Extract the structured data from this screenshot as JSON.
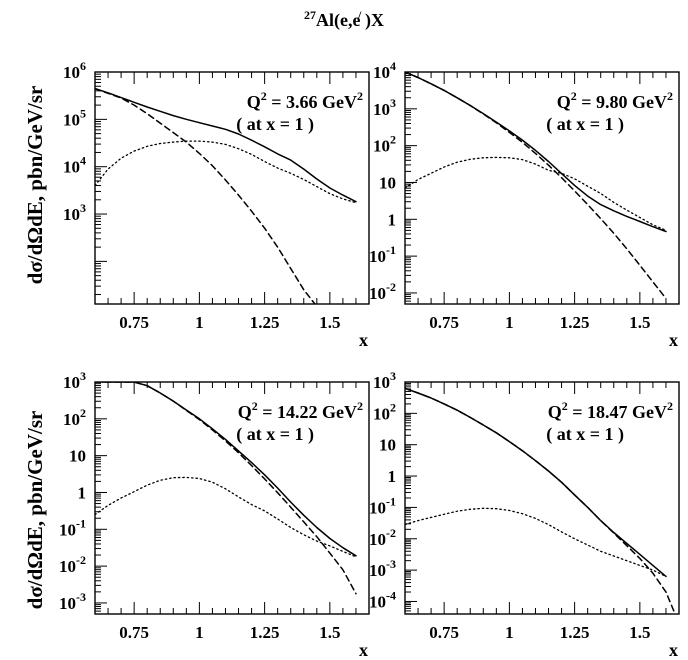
{
  "figure": {
    "title": "Al(e,e )X",
    "title_sup": "27",
    "title_prime": "/",
    "ylabel": "dσ/dΩdE,  pbn/GeV/sr"
  },
  "chart_data": [
    {
      "type": "line",
      "xlabel": "x",
      "xlim": [
        0.6,
        1.65
      ],
      "xticks": [
        "0.75",
        "1",
        "1.25",
        "1.5"
      ],
      "yscale": "log",
      "ylim_exp": [
        1.1,
        6.0
      ],
      "ytick_labels": [
        {
          "base": "10",
          "exp": "6",
          "at": 6
        },
        {
          "base": "10",
          "exp": "5",
          "at": 5
        },
        {
          "base": "10",
          "exp": "4",
          "at": 4
        },
        {
          "base": "10",
          "exp": "3",
          "at": 3
        }
      ],
      "annotation": {
        "q2": "Q",
        "q2_exp": "2",
        "q2_value": " = 3.66 GeV",
        "q2_unit_exp": "2",
        "note": "( at x = 1 )"
      },
      "series": [
        {
          "style": "solid",
          "x": [
            0.6,
            0.65,
            0.7,
            0.75,
            0.8,
            0.85,
            0.9,
            0.95,
            1.0,
            1.05,
            1.1,
            1.15,
            1.2,
            1.25,
            1.3,
            1.35,
            1.4,
            1.45,
            1.5,
            1.55,
            1.6
          ],
          "log10y": [
            5.65,
            5.56,
            5.46,
            5.36,
            5.26,
            5.17,
            5.08,
            5.0,
            4.93,
            4.86,
            4.79,
            4.69,
            4.56,
            4.42,
            4.27,
            4.14,
            3.95,
            3.74,
            3.55,
            3.4,
            3.26
          ]
        },
        {
          "style": "dashed",
          "x": [
            0.6,
            0.65,
            0.7,
            0.75,
            0.8,
            0.85,
            0.9,
            0.95,
            1.0,
            1.05,
            1.1,
            1.15,
            1.2,
            1.25,
            1.3,
            1.35,
            1.4,
            1.45
          ],
          "log10y": [
            5.65,
            5.55,
            5.45,
            5.3,
            5.12,
            4.92,
            4.72,
            4.52,
            4.28,
            4.02,
            3.72,
            3.4,
            3.06,
            2.7,
            2.3,
            1.85,
            1.4,
            1.05
          ]
        },
        {
          "style": "dotted",
          "x": [
            0.6,
            0.65,
            0.7,
            0.75,
            0.8,
            0.85,
            0.9,
            0.95,
            1.0,
            1.05,
            1.1,
            1.15,
            1.2,
            1.25,
            1.3,
            1.35,
            1.4,
            1.45,
            1.5,
            1.55,
            1.6
          ],
          "log10y": [
            3.6,
            3.95,
            4.18,
            4.33,
            4.43,
            4.49,
            4.52,
            4.54,
            4.54,
            4.52,
            4.47,
            4.38,
            4.26,
            4.11,
            3.97,
            3.86,
            3.73,
            3.58,
            3.43,
            3.32,
            3.24
          ]
        }
      ]
    },
    {
      "type": "line",
      "xlabel": "x",
      "xlim": [
        0.6,
        1.65
      ],
      "xticks": [
        "0.75",
        "1",
        "1.25",
        "1.5"
      ],
      "yscale": "log",
      "ylim_exp": [
        -2.3,
        4.0
      ],
      "ytick_labels": [
        {
          "base": "10",
          "exp": "4",
          "at": 4
        },
        {
          "base": "10",
          "exp": "3",
          "at": 3
        },
        {
          "base": "10",
          "exp": "2",
          "at": 2
        },
        {
          "base": "10",
          "exp": "",
          "at": 1
        },
        {
          "base": "1",
          "exp": "",
          "at": 0
        },
        {
          "base": "10",
          "exp": "-1",
          "at": -1
        },
        {
          "base": "10",
          "exp": "-2",
          "at": -2
        }
      ],
      "annotation": {
        "q2": "Q",
        "q2_exp": "2",
        "q2_value": " = 9.80 GeV",
        "q2_unit_exp": "2",
        "note": "( at x = 1 )"
      },
      "series": [
        {
          "style": "solid",
          "x": [
            0.6,
            0.65,
            0.7,
            0.75,
            0.8,
            0.85,
            0.9,
            0.95,
            1.0,
            1.05,
            1.1,
            1.15,
            1.2,
            1.25,
            1.3,
            1.35,
            1.4,
            1.45,
            1.5,
            1.55,
            1.6
          ],
          "log10y": [
            4.0,
            3.85,
            3.68,
            3.5,
            3.3,
            3.09,
            2.87,
            2.64,
            2.4,
            2.15,
            1.87,
            1.57,
            1.24,
            0.92,
            0.63,
            0.4,
            0.23,
            0.08,
            -0.06,
            -0.2,
            -0.33
          ]
        },
        {
          "style": "dashed",
          "x": [
            0.6,
            0.65,
            0.7,
            0.75,
            0.8,
            0.85,
            0.9,
            0.95,
            1.0,
            1.05,
            1.1,
            1.15,
            1.2,
            1.25,
            1.3,
            1.35,
            1.4,
            1.45,
            1.5,
            1.55,
            1.6
          ],
          "log10y": [
            4.0,
            3.85,
            3.68,
            3.5,
            3.3,
            3.09,
            2.86,
            2.62,
            2.36,
            2.09,
            1.79,
            1.47,
            1.13,
            0.77,
            0.4,
            0.02,
            -0.38,
            -0.8,
            -1.25,
            -1.7,
            -2.15
          ]
        },
        {
          "style": "dotted",
          "x": [
            0.6,
            0.65,
            0.7,
            0.75,
            0.8,
            0.85,
            0.9,
            0.95,
            1.0,
            1.05,
            1.1,
            1.15,
            1.2,
            1.25,
            1.3,
            1.35,
            1.4,
            1.45,
            1.5,
            1.55,
            1.6
          ],
          "log10y": [
            0.85,
            1.08,
            1.25,
            1.42,
            1.55,
            1.63,
            1.67,
            1.68,
            1.67,
            1.62,
            1.5,
            1.33,
            1.25,
            1.1,
            0.9,
            0.7,
            0.46,
            0.25,
            0.05,
            -0.15,
            -0.3
          ]
        }
      ]
    },
    {
      "type": "line",
      "xlabel": "x",
      "xlim": [
        0.6,
        1.65
      ],
      "xticks": [
        "0.75",
        "1",
        "1.25",
        "1.5"
      ],
      "yscale": "log",
      "ylim_exp": [
        -3.3,
        3.0
      ],
      "ytick_labels": [
        {
          "base": "10",
          "exp": "3",
          "at": 3
        },
        {
          "base": "10",
          "exp": "2",
          "at": 2
        },
        {
          "base": "10",
          "exp": "",
          "at": 1
        },
        {
          "base": "1",
          "exp": "",
          "at": 0
        },
        {
          "base": "10",
          "exp": "-1",
          "at": -1
        },
        {
          "base": "10",
          "exp": "-2",
          "at": -2
        },
        {
          "base": "10",
          "exp": "-3",
          "at": -3
        }
      ],
      "annotation": {
        "q2": "Q",
        "q2_exp": "2",
        "q2_value": " = 14.22 GeV",
        "q2_unit_exp": "2",
        "note": "( at x = 1 )"
      },
      "series": [
        {
          "style": "solid",
          "x": [
            0.6,
            0.65,
            0.7,
            0.75,
            0.8,
            0.85,
            0.9,
            0.95,
            1.0,
            1.05,
            1.1,
            1.15,
            1.2,
            1.25,
            1.3,
            1.35,
            1.4,
            1.45,
            1.5,
            1.55,
            1.6
          ],
          "log10y": [
            3.0,
            3.0,
            3.0,
            3.0,
            2.9,
            2.7,
            2.48,
            2.24,
            2.0,
            1.73,
            1.44,
            1.13,
            0.81,
            0.48,
            0.12,
            -0.26,
            -0.62,
            -0.95,
            -1.25,
            -1.5,
            -1.72
          ]
        },
        {
          "style": "dashed",
          "x": [
            0.6,
            0.65,
            0.7,
            0.75,
            0.8,
            0.85,
            0.9,
            0.95,
            1.0,
            1.05,
            1.1,
            1.15,
            1.2,
            1.25,
            1.3,
            1.35,
            1.4,
            1.45,
            1.5,
            1.55,
            1.6
          ],
          "log10y": [
            3.0,
            3.0,
            3.0,
            3.0,
            2.9,
            2.7,
            2.48,
            2.23,
            1.98,
            1.7,
            1.4,
            1.08,
            0.73,
            0.37,
            -0.01,
            -0.4,
            -0.8,
            -1.2,
            -1.65,
            -2.1,
            -2.75
          ]
        },
        {
          "style": "dotted",
          "x": [
            0.6,
            0.65,
            0.7,
            0.75,
            0.8,
            0.85,
            0.9,
            0.95,
            1.0,
            1.05,
            1.1,
            1.15,
            1.2,
            1.25,
            1.3,
            1.35,
            1.4,
            1.45,
            1.5,
            1.55,
            1.6
          ],
          "log10y": [
            -0.6,
            -0.35,
            -0.15,
            0.02,
            0.2,
            0.33,
            0.4,
            0.41,
            0.38,
            0.28,
            0.1,
            -0.12,
            -0.33,
            -0.5,
            -0.72,
            -0.95,
            -1.15,
            -1.32,
            -1.45,
            -1.6,
            -1.75
          ]
        }
      ]
    },
    {
      "type": "line",
      "xlabel": "x",
      "xlim": [
        0.6,
        1.65
      ],
      "xticks": [
        "0.75",
        "1",
        "1.25",
        "1.5"
      ],
      "yscale": "log",
      "ylim_exp": [
        -4.4,
        3.0
      ],
      "ytick_labels": [
        {
          "base": "10",
          "exp": "3",
          "at": 3
        },
        {
          "base": "10",
          "exp": "2",
          "at": 2
        },
        {
          "base": "10",
          "exp": "",
          "at": 1
        },
        {
          "base": "1",
          "exp": "",
          "at": 0
        },
        {
          "base": "10",
          "exp": "-1",
          "at": -1
        },
        {
          "base": "10",
          "exp": "-2",
          "at": -2
        },
        {
          "base": "10",
          "exp": "-3",
          "at": -3
        },
        {
          "base": "10",
          "exp": "-4",
          "at": -4
        }
      ],
      "annotation": {
        "q2": "Q",
        "q2_exp": "2",
        "q2_value": " = 18.47 GeV",
        "q2_unit_exp": "2",
        "note": "( at x = 1 )"
      },
      "series": [
        {
          "style": "solid",
          "x": [
            0.6,
            0.65,
            0.7,
            0.75,
            0.8,
            0.85,
            0.9,
            0.95,
            1.0,
            1.05,
            1.1,
            1.15,
            1.2,
            1.25,
            1.3,
            1.35,
            1.4,
            1.45,
            1.5,
            1.55,
            1.6
          ],
          "log10y": [
            2.8,
            2.65,
            2.49,
            2.3,
            2.1,
            1.87,
            1.63,
            1.38,
            1.1,
            0.81,
            0.49,
            0.16,
            -0.2,
            -0.6,
            -1.0,
            -1.42,
            -1.8,
            -2.15,
            -2.5,
            -2.85,
            -3.2
          ]
        },
        {
          "style": "dashed",
          "x": [
            0.6,
            0.65,
            0.7,
            0.75,
            0.8,
            0.85,
            0.9,
            0.95,
            1.0,
            1.05,
            1.1,
            1.15,
            1.2,
            1.25,
            1.3,
            1.35,
            1.4,
            1.45,
            1.5,
            1.55,
            1.6,
            1.63
          ],
          "log10y": [
            2.8,
            2.65,
            2.49,
            2.3,
            2.1,
            1.87,
            1.63,
            1.38,
            1.1,
            0.81,
            0.49,
            0.16,
            -0.2,
            -0.6,
            -1.0,
            -1.42,
            -1.82,
            -2.22,
            -2.63,
            -3.1,
            -3.7,
            -4.3
          ]
        },
        {
          "style": "dotted",
          "x": [
            0.6,
            0.65,
            0.7,
            0.75,
            0.8,
            0.85,
            0.9,
            0.95,
            1.0,
            1.05,
            1.1,
            1.15,
            1.2,
            1.25,
            1.3,
            1.35,
            1.4,
            1.45,
            1.5,
            1.55,
            1.6
          ],
          "log10y": [
            -1.55,
            -1.42,
            -1.32,
            -1.22,
            -1.12,
            -1.06,
            -1.03,
            -1.04,
            -1.1,
            -1.2,
            -1.35,
            -1.55,
            -1.78,
            -2.0,
            -2.2,
            -2.4,
            -2.55,
            -2.7,
            -2.85,
            -3.0,
            -3.2
          ]
        }
      ]
    }
  ]
}
